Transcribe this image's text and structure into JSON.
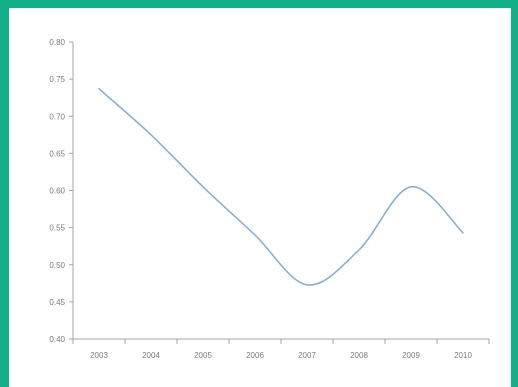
{
  "chart_data": {
    "type": "line",
    "title": "",
    "xlabel": "",
    "ylabel": "",
    "x": [
      "2003",
      "2004",
      "2005",
      "2006",
      "2007",
      "2008",
      "2009",
      "2010"
    ],
    "series": [
      {
        "values": [
          0.737,
          0.675,
          0.605,
          0.54,
          0.473,
          0.52,
          0.605,
          0.543
        ],
        "color": "#8aaed4"
      }
    ],
    "ylim": [
      0.4,
      0.8
    ],
    "yticks": [
      "0.80",
      "0.75",
      "0.70",
      "0.65",
      "0.60",
      "0.55",
      "0.50",
      "0.45",
      "0.40"
    ],
    "axis_color": "#a6a6a6",
    "frame_color": "#13b087",
    "grid": false,
    "legend": "none"
  }
}
